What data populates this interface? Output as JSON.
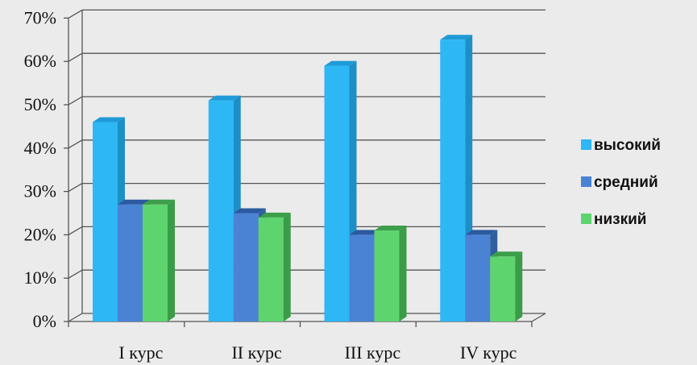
{
  "chart_data": {
    "type": "bar",
    "categories": [
      "I курс",
      "II курс",
      "III курс",
      "IV курс"
    ],
    "series": [
      {
        "name": "высокий",
        "values": [
          46,
          51,
          59,
          65
        ],
        "color": "#2db7f5",
        "side_color": "#1c8fc6",
        "top_color": "#1f9ad7"
      },
      {
        "name": "средний",
        "values": [
          27,
          25,
          20,
          20
        ],
        "color": "#4a82d4",
        "side_color": "#2e5f9e",
        "top_color": "#2c5aa0"
      },
      {
        "name": "низкий",
        "values": [
          27,
          24,
          21,
          15
        ],
        "color": "#5ed46f",
        "side_color": "#3a9c47",
        "top_color": "#3d9e4a"
      }
    ],
    "y_ticks": [
      "0%",
      "10%",
      "20%",
      "30%",
      "40%",
      "50%",
      "60%",
      "70%"
    ],
    "ylim": [
      0,
      70
    ],
    "grid": true,
    "legend_position": "right",
    "three_d": true
  }
}
